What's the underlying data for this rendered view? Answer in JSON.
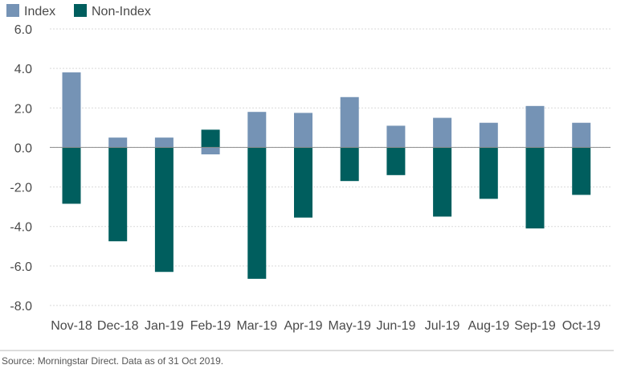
{
  "chart_data": {
    "type": "bar",
    "categories": [
      "Nov-18",
      "Dec-18",
      "Jan-19",
      "Feb-19",
      "Mar-19",
      "Apr-19",
      "May-19",
      "Jun-19",
      "Jul-19",
      "Aug-19",
      "Sep-19",
      "Oct-19"
    ],
    "series": [
      {
        "name": "Index",
        "color": "#7593b5",
        "values": [
          3.8,
          0.5,
          0.5,
          -0.35,
          1.8,
          1.75,
          2.55,
          1.1,
          1.5,
          1.25,
          2.1,
          1.25
        ]
      },
      {
        "name": "Non-Index",
        "color": "#005e5e",
        "values": [
          -2.85,
          -4.75,
          -6.3,
          0.9,
          -6.65,
          -3.55,
          -1.7,
          -1.4,
          -3.5,
          -2.6,
          -4.1,
          -2.4
        ]
      }
    ],
    "stacked": true,
    "ylim": [
      -8,
      6
    ],
    "yticks": [
      6,
      4,
      2,
      0,
      -2,
      -4,
      -6,
      -8
    ],
    "ytick_labels": [
      "6.0",
      "4.0",
      "2.0",
      "0.0",
      "-2.0",
      "-4.0",
      "-6.0",
      "-8.0"
    ],
    "title": "",
    "xlabel": "",
    "ylabel": "",
    "grid": "horizontal-dashed",
    "legend_position": "top-left",
    "source": "Source: Morningstar Direct. Data as of 31 Oct 2019."
  }
}
